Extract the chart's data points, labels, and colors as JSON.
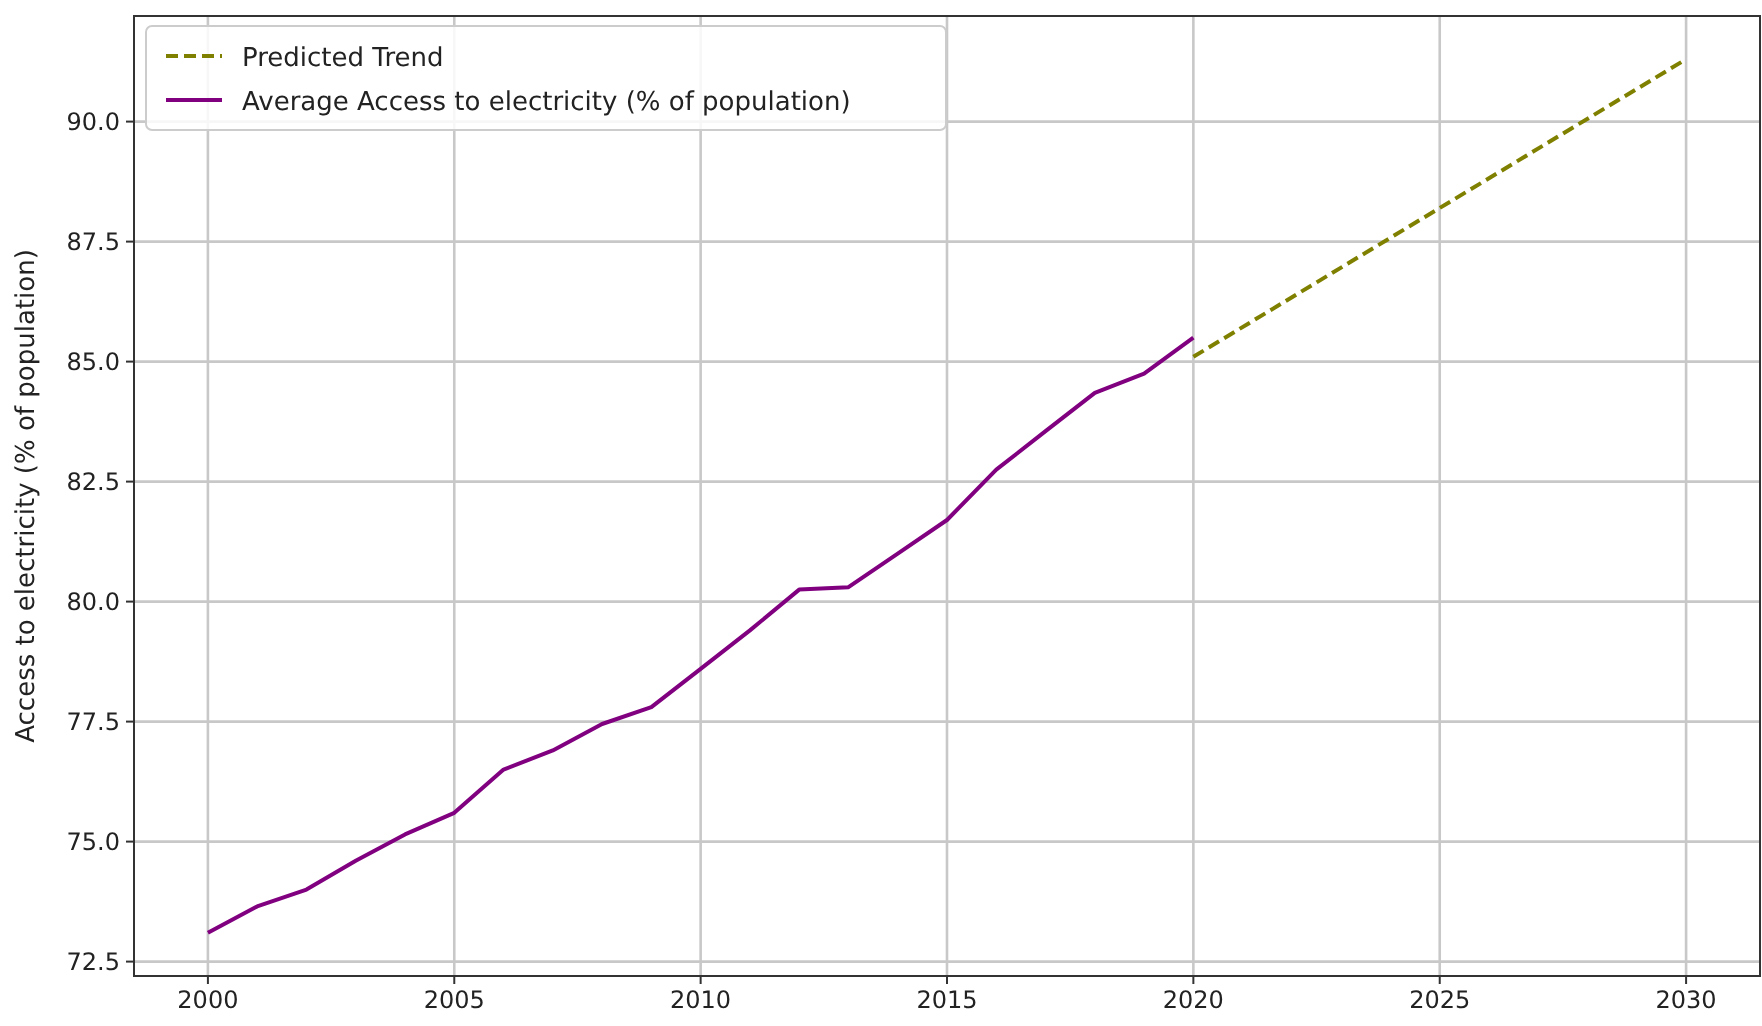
{
  "chart_data": {
    "type": "line",
    "ylabel": "Access to electricity (% of population)",
    "xlim": [
      1998.5,
      2031.5
    ],
    "xticks": [
      2000,
      2005,
      2010,
      2015,
      2020,
      2025,
      2030
    ],
    "ylim": [
      72.2,
      92.2
    ],
    "yticks": [
      {
        "value": 72.5,
        "label": "72.5"
      },
      {
        "value": 75,
        "label": "75.0"
      },
      {
        "value": 77.5,
        "label": "77.5"
      },
      {
        "value": 80,
        "label": "80.0"
      },
      {
        "value": 82.5,
        "label": "82.5"
      },
      {
        "value": 85,
        "label": "85.0"
      },
      {
        "value": 87.5,
        "label": "87.5"
      },
      {
        "value": 90,
        "label": "90.0"
      }
    ],
    "grid": true,
    "legend": "top left",
    "series": [
      {
        "name": "Predicted Trend",
        "color": "#808000",
        "line_style": "dashed",
        "x": [
          2020,
          2030
        ],
        "values": [
          85.1,
          91.3
        ]
      },
      {
        "name": "Average Access to electricity (% of population)",
        "color": "#800080",
        "line_style": "solid",
        "x": [
          2000,
          2001,
          2002,
          2003,
          2004,
          2005,
          2006,
          2007,
          2008,
          2009,
          2010,
          2011,
          2012,
          2013,
          2014,
          2015,
          2016,
          2017,
          2018,
          2019,
          2020
        ],
        "values": [
          73.1,
          73.65,
          74.0,
          74.6,
          75.15,
          75.6,
          76.5,
          76.9,
          77.45,
          77.8,
          78.6,
          79.4,
          80.25,
          80.3,
          81.0,
          81.7,
          82.75,
          83.55,
          84.35,
          84.75,
          85.5
        ]
      }
    ]
  }
}
